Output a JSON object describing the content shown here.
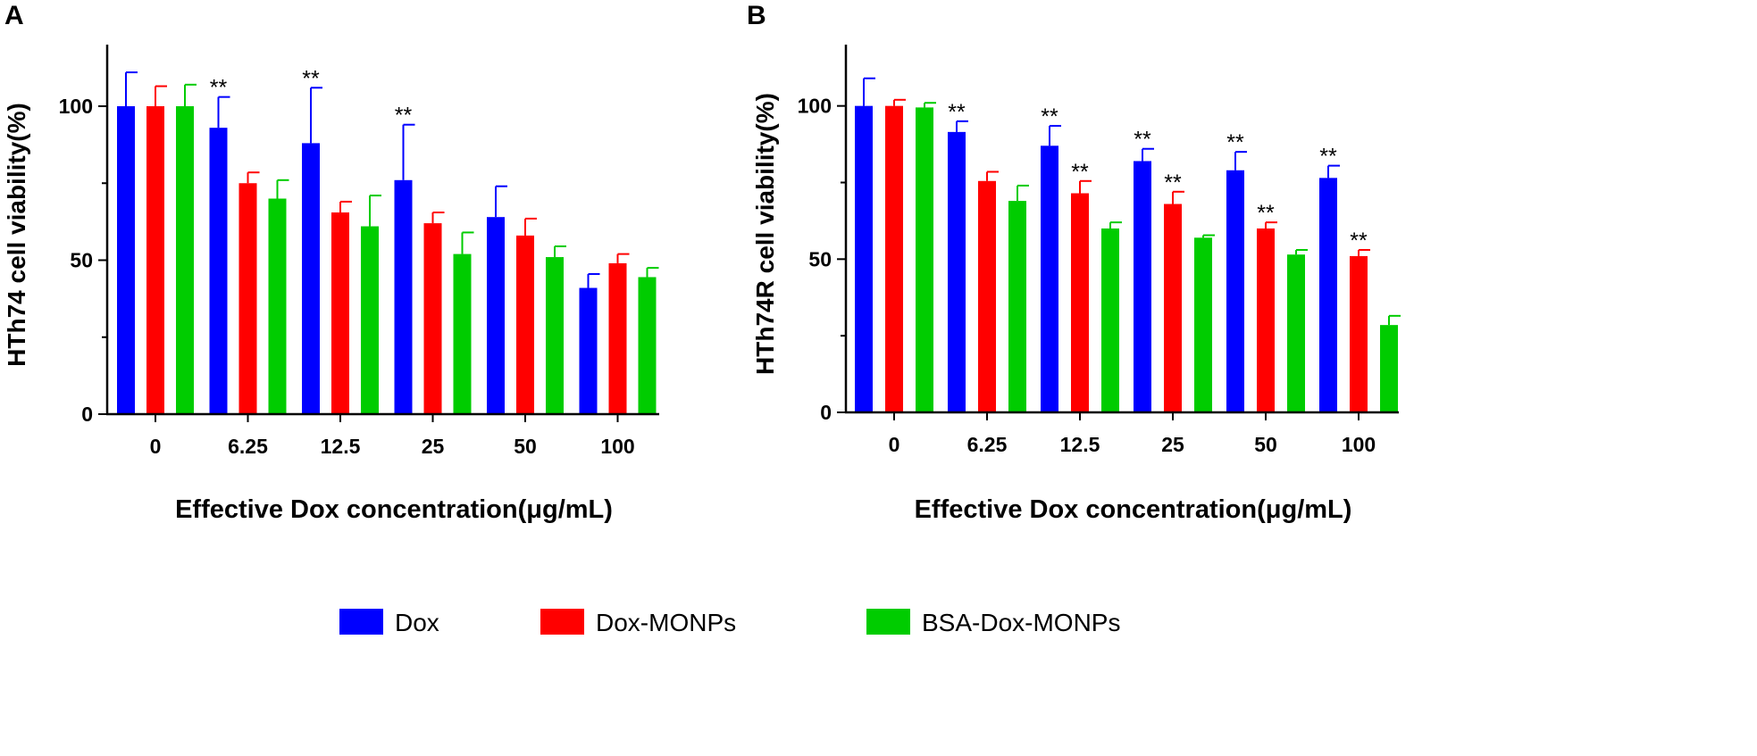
{
  "legend": {
    "position": "bottom",
    "entries": [
      {
        "name": "Dox",
        "color": "#0000ff"
      },
      {
        "name": "Dox-MONPs",
        "color": "#ff0000"
      },
      {
        "name": "BSA-Dox-MONPs",
        "color": "#00cc00"
      }
    ]
  },
  "chart_data": [
    {
      "type": "bar",
      "panel_label": "A",
      "title": "",
      "xlabel": "Effective Dox concentration(μg/mL)",
      "ylabel": "HTh74 cell viability(%)",
      "ylim": [
        0,
        120
      ],
      "yticks": [
        0,
        50,
        100
      ],
      "categories": [
        "0",
        "6.25",
        "12.5",
        "25",
        "50",
        "100"
      ],
      "series": [
        {
          "name": "Dox",
          "color": "#0000ff",
          "values": [
            100,
            93,
            88,
            76,
            64,
            41
          ],
          "errors": [
            11,
            10,
            18,
            18,
            10,
            4.5
          ],
          "significance": [
            "",
            "**",
            "**",
            "**",
            "",
            ""
          ]
        },
        {
          "name": "Dox-MONPs",
          "color": "#ff0000",
          "values": [
            100,
            75,
            65.5,
            62,
            58,
            49
          ],
          "errors": [
            6.5,
            3.5,
            3.5,
            3.5,
            5.5,
            3
          ],
          "significance": [
            "",
            "",
            "",
            "",
            "",
            ""
          ]
        },
        {
          "name": "BSA-Dox-MONPs",
          "color": "#00cc00",
          "values": [
            100,
            70,
            61,
            52,
            51,
            44.5
          ],
          "errors": [
            7,
            6,
            10,
            7,
            3.5,
            3
          ],
          "significance": [
            "",
            "",
            "",
            "",
            "",
            ""
          ]
        }
      ]
    },
    {
      "type": "bar",
      "panel_label": "B",
      "title": "",
      "xlabel": "Effective Dox concentration(μg/mL)",
      "ylabel": "HTh74R cell viability(%)",
      "ylim": [
        0,
        120
      ],
      "yticks": [
        0,
        50,
        100
      ],
      "categories": [
        "0",
        "6.25",
        "12.5",
        "25",
        "50",
        "100"
      ],
      "series": [
        {
          "name": "Dox",
          "color": "#0000ff",
          "values": [
            100,
            91.5,
            87,
            82,
            79,
            76.5
          ],
          "errors": [
            9,
            3.5,
            6.5,
            4,
            6,
            4
          ],
          "significance": [
            "",
            "**",
            "**",
            "**",
            "**",
            "**"
          ]
        },
        {
          "name": "Dox-MONPs",
          "color": "#ff0000",
          "values": [
            100,
            75.5,
            71.5,
            68,
            60,
            51
          ],
          "errors": [
            2,
            3,
            4,
            4,
            2,
            2
          ],
          "significance": [
            "",
            "",
            "**",
            "**",
            "**",
            "**"
          ]
        },
        {
          "name": "BSA-Dox-MONPs",
          "color": "#00cc00",
          "values": [
            99.5,
            69,
            60,
            57,
            51.5,
            28.5
          ],
          "errors": [
            1.5,
            5,
            2,
            0.8,
            1.5,
            3
          ],
          "significance": [
            "",
            "",
            "",
            "",
            "",
            ""
          ]
        }
      ]
    }
  ]
}
